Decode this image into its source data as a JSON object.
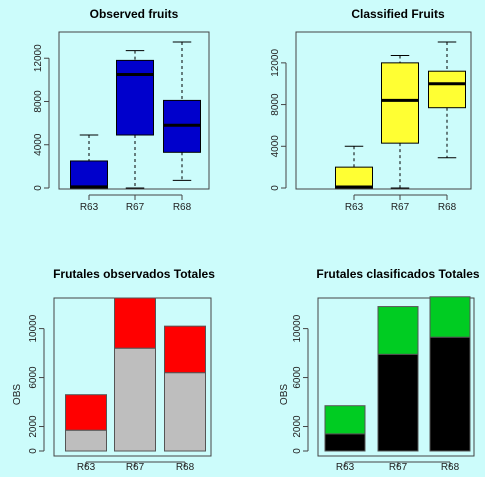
{
  "colors": {
    "background": "#ccfcfb",
    "observed_box": "#0000cc",
    "classified_box": "#ffff33",
    "observed_bottom": "#bebebe",
    "observed_top": "#ff0000",
    "classified_bottom": "#000000",
    "classified_top": "#00cc22"
  },
  "chart_data": [
    {
      "type": "boxplot",
      "title": "Observed fruits",
      "xlabel": "",
      "ylabel": "",
      "categories": [
        "R63",
        "R67",
        "R68"
      ],
      "yticks": [
        0,
        4000,
        8000,
        12000
      ],
      "ylim": [
        0,
        13500
      ],
      "boxes": [
        {
          "min": 0,
          "q1": 0,
          "median": 100,
          "q3": 2500,
          "max": 4900
        },
        {
          "min": 0,
          "q1": 4900,
          "median": 10500,
          "q3": 11800,
          "max": 12700
        },
        {
          "min": 700,
          "q1": 3300,
          "median": 5800,
          "q3": 8100,
          "max": 13500
        }
      ],
      "color": "#0000cc"
    },
    {
      "type": "boxplot",
      "title": "Classified Fruits",
      "xlabel": "",
      "ylabel": "",
      "categories": [
        "R63",
        "R67",
        "R68"
      ],
      "yticks": [
        0,
        4000,
        8000,
        12000
      ],
      "ylim": [
        0,
        14000
      ],
      "boxes": [
        {
          "min": 0,
          "q1": 0,
          "median": 100,
          "q3": 2000,
          "max": 4000
        },
        {
          "min": 0,
          "q1": 4300,
          "median": 8400,
          "q3": 12000,
          "max": 12700
        },
        {
          "min": 2900,
          "q1": 7700,
          "median": 10000,
          "q3": 11200,
          "max": 14000
        }
      ],
      "color": "#ffff33"
    },
    {
      "type": "bar",
      "stacked": true,
      "title": "Frutales observados Totales",
      "xlabel": "",
      "ylabel": "",
      "categories": [
        "R63",
        "R67",
        "R68"
      ],
      "yticks": [
        0,
        2000,
        6000,
        10000
      ],
      "ylim": [
        0,
        12500
      ],
      "series": [
        {
          "values": [
            1700,
            8400,
            6400
          ],
          "color": "#bebebe"
        },
        {
          "values": [
            2900,
            4100,
            3800
          ],
          "color": "#ff0000"
        }
      ]
    },
    {
      "type": "bar",
      "stacked": true,
      "title": "Frutales clasificados Totales",
      "xlabel": "",
      "ylabel": "OBS",
      "categories": [
        "R63",
        "R67",
        "R68"
      ],
      "yticks": [
        0,
        2000,
        6000,
        10000
      ],
      "ylim": [
        0,
        12500
      ],
      "series": [
        {
          "values": [
            1400,
            7900,
            9300
          ],
          "color": "#000000"
        },
        {
          "values": [
            2300,
            3900,
            3300
          ],
          "color": "#00cc22"
        }
      ]
    }
  ],
  "extra_labels": {
    "left_bar_ylabel": "OBS"
  }
}
